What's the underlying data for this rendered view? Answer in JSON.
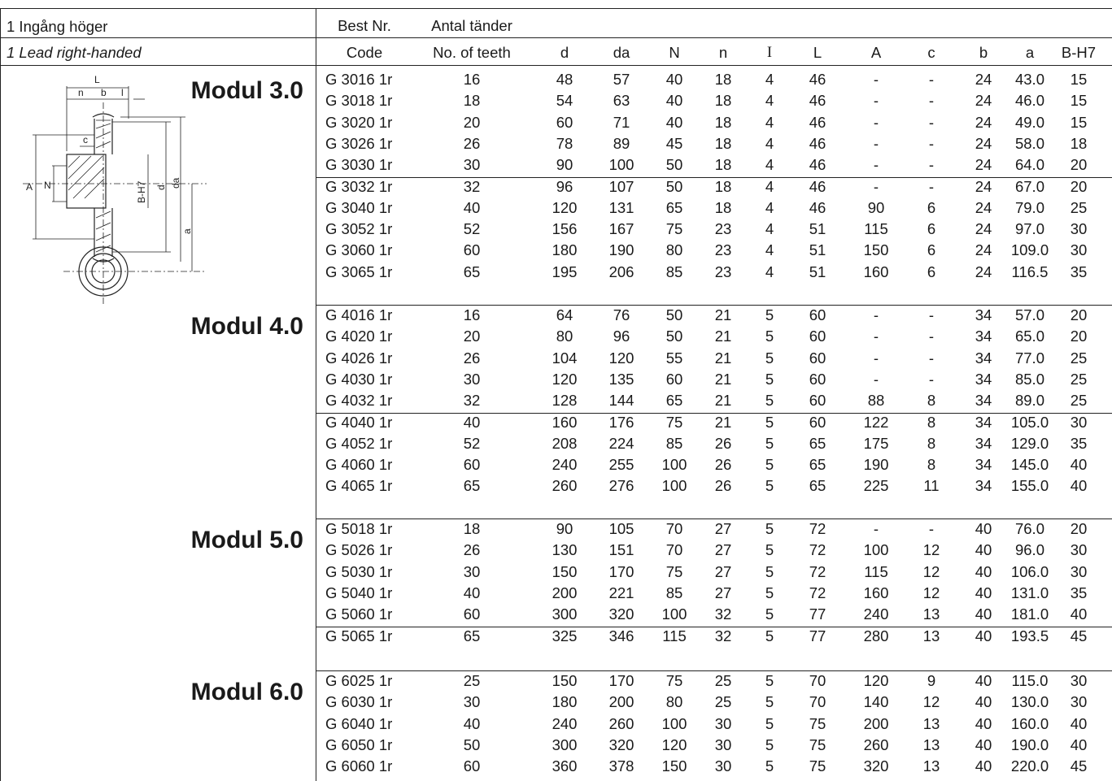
{
  "title": {
    "swedish": "1 Ingång höger",
    "english": "1 Lead right-handed"
  },
  "columns": [
    {
      "key": "code",
      "top": "Best Nr.",
      "bottom": "Code"
    },
    {
      "key": "teeth",
      "top": "Antal tänder",
      "bottom": "No. of teeth"
    },
    {
      "key": "d",
      "top": "",
      "bottom": "d"
    },
    {
      "key": "da",
      "top": "",
      "bottom": "da"
    },
    {
      "key": "N",
      "top": "",
      "bottom": "N"
    },
    {
      "key": "n",
      "top": "",
      "bottom": "n"
    },
    {
      "key": "I",
      "top": "",
      "bottom": "I"
    },
    {
      "key": "L",
      "top": "",
      "bottom": "L"
    },
    {
      "key": "A",
      "top": "",
      "bottom": "A"
    },
    {
      "key": "c",
      "top": "",
      "bottom": "c"
    },
    {
      "key": "b",
      "top": "",
      "bottom": "b"
    },
    {
      "key": "a",
      "top": "",
      "bottom": "a"
    },
    {
      "key": "BH7",
      "top": "",
      "bottom": "B-H7"
    }
  ],
  "drawing_labels": {
    "L": "L",
    "n": "n",
    "b": "b",
    "l": "l",
    "c": "c",
    "A": "A",
    "N": "N",
    "BH7": "B-H7",
    "d": "d",
    "da": "da",
    "a": "a"
  },
  "groups": [
    {
      "label": "Modul 3.0",
      "rows": [
        [
          "G 3016 1r",
          "16",
          "48",
          "57",
          "40",
          "18",
          "4",
          "46",
          "-",
          "-",
          "24",
          "43.0",
          "15"
        ],
        [
          "G 3018 1r",
          "18",
          "54",
          "63",
          "40",
          "18",
          "4",
          "46",
          "-",
          "-",
          "24",
          "46.0",
          "15"
        ],
        [
          "G 3020 1r",
          "20",
          "60",
          "71",
          "40",
          "18",
          "4",
          "46",
          "-",
          "-",
          "24",
          "49.0",
          "15"
        ],
        [
          "G 3026 1r",
          "26",
          "78",
          "89",
          "45",
          "18",
          "4",
          "46",
          "-",
          "-",
          "24",
          "58.0",
          "18"
        ],
        [
          "G 3030 1r",
          "30",
          "90",
          "100",
          "50",
          "18",
          "4",
          "46",
          "-",
          "-",
          "24",
          "64.0",
          "20"
        ],
        [
          "G 3032 1r",
          "32",
          "96",
          "107",
          "50",
          "18",
          "4",
          "46",
          "-",
          "-",
          "24",
          "67.0",
          "20"
        ],
        [
          "G 3040 1r",
          "40",
          "120",
          "131",
          "65",
          "18",
          "4",
          "46",
          "90",
          "6",
          "24",
          "79.0",
          "25"
        ],
        [
          "G 3052 1r",
          "52",
          "156",
          "167",
          "75",
          "23",
          "4",
          "51",
          "115",
          "6",
          "24",
          "97.0",
          "30"
        ],
        [
          "G 3060 1r",
          "60",
          "180",
          "190",
          "80",
          "23",
          "4",
          "51",
          "150",
          "6",
          "24",
          "109.0",
          "30"
        ],
        [
          "G 3065 1r",
          "65",
          "195",
          "206",
          "85",
          "23",
          "4",
          "51",
          "160",
          "6",
          "24",
          "116.5",
          "35"
        ]
      ]
    },
    {
      "label": "Modul 4.0",
      "rows": [
        [
          "G 4016 1r",
          "16",
          "64",
          "76",
          "50",
          "21",
          "5",
          "60",
          "-",
          "-",
          "34",
          "57.0",
          "20"
        ],
        [
          "G 4020 1r",
          "20",
          "80",
          "96",
          "50",
          "21",
          "5",
          "60",
          "-",
          "-",
          "34",
          "65.0",
          "20"
        ],
        [
          "G 4026 1r",
          "26",
          "104",
          "120",
          "55",
          "21",
          "5",
          "60",
          "-",
          "-",
          "34",
          "77.0",
          "25"
        ],
        [
          "G 4030 1r",
          "30",
          "120",
          "135",
          "60",
          "21",
          "5",
          "60",
          "-",
          "-",
          "34",
          "85.0",
          "25"
        ],
        [
          "G 4032 1r",
          "32",
          "128",
          "144",
          "65",
          "21",
          "5",
          "60",
          "88",
          "8",
          "34",
          "89.0",
          "25"
        ],
        [
          "G 4040 1r",
          "40",
          "160",
          "176",
          "75",
          "21",
          "5",
          "60",
          "122",
          "8",
          "34",
          "105.0",
          "30"
        ],
        [
          "G 4052 1r",
          "52",
          "208",
          "224",
          "85",
          "26",
          "5",
          "65",
          "175",
          "8",
          "34",
          "129.0",
          "35"
        ],
        [
          "G 4060 1r",
          "60",
          "240",
          "255",
          "100",
          "26",
          "5",
          "65",
          "190",
          "8",
          "34",
          "145.0",
          "40"
        ],
        [
          "G 4065 1r",
          "65",
          "260",
          "276",
          "100",
          "26",
          "5",
          "65",
          "225",
          "11",
          "34",
          "155.0",
          "40"
        ]
      ]
    },
    {
      "label": "Modul 5.0",
      "rows": [
        [
          "G 5018 1r",
          "18",
          "90",
          "105",
          "70",
          "27",
          "5",
          "72",
          "-",
          "-",
          "40",
          "76.0",
          "20"
        ],
        [
          "G 5026 1r",
          "26",
          "130",
          "151",
          "70",
          "27",
          "5",
          "72",
          "100",
          "12",
          "40",
          "96.0",
          "30"
        ],
        [
          "G 5030 1r",
          "30",
          "150",
          "170",
          "75",
          "27",
          "5",
          "72",
          "115",
          "12",
          "40",
          "106.0",
          "30"
        ],
        [
          "G 5040 1r",
          "40",
          "200",
          "221",
          "85",
          "27",
          "5",
          "72",
          "160",
          "12",
          "40",
          "131.0",
          "35"
        ],
        [
          "G 5060 1r",
          "60",
          "300",
          "320",
          "100",
          "32",
          "5",
          "77",
          "240",
          "13",
          "40",
          "181.0",
          "40"
        ],
        [
          "G 5065 1r",
          "65",
          "325",
          "346",
          "115",
          "32",
          "5",
          "77",
          "280",
          "13",
          "40",
          "193.5",
          "45"
        ]
      ]
    },
    {
      "label": "Modul 6.0",
      "rows": [
        [
          "G 6025 1r",
          "25",
          "150",
          "170",
          "75",
          "25",
          "5",
          "70",
          "120",
          "9",
          "40",
          "115.0",
          "30"
        ],
        [
          "G 6030 1r",
          "30",
          "180",
          "200",
          "80",
          "25",
          "5",
          "70",
          "140",
          "12",
          "40",
          "130.0",
          "30"
        ],
        [
          "G 6040 1r",
          "40",
          "240",
          "260",
          "100",
          "30",
          "5",
          "75",
          "200",
          "13",
          "40",
          "160.0",
          "40"
        ],
        [
          "G 6050 1r",
          "50",
          "300",
          "320",
          "120",
          "30",
          "5",
          "75",
          "260",
          "13",
          "40",
          "190.0",
          "40"
        ],
        [
          "G 6060 1r",
          "60",
          "360",
          "378",
          "150",
          "30",
          "5",
          "75",
          "320",
          "13",
          "40",
          "220.0",
          "45"
        ]
      ]
    }
  ]
}
